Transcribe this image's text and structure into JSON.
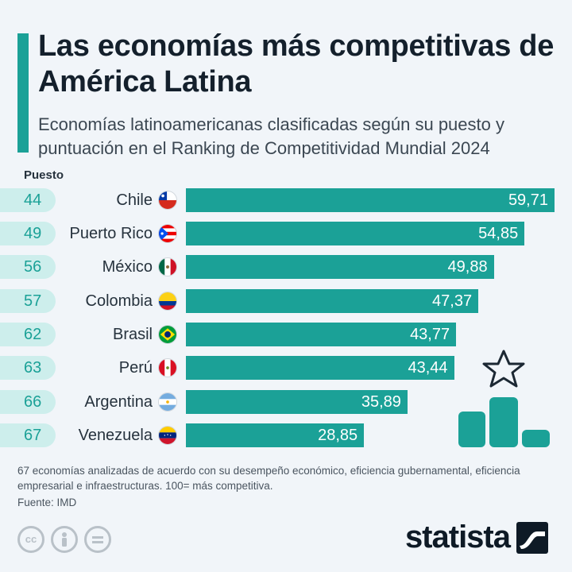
{
  "header": {
    "title": "Las economías más competitivas de América Latina",
    "subtitle": "Economías latinoamericanas clasificadas según su puesto y puntuación en el Ranking de Competitividad Mundial 2024",
    "rank_column_label": "Puesto"
  },
  "chart_data": {
    "type": "bar",
    "orientation": "horizontal",
    "title": "Las economías más competitivas de América Latina",
    "subtitle": "Economías latinoamericanas clasificadas según su puesto y puntuación en el Ranking de Competitividad Mundial 2024",
    "categories": [
      "Chile",
      "Puerto Rico",
      "México",
      "Colombia",
      "Brasil",
      "Perú",
      "Argentina",
      "Venezuela"
    ],
    "ranks": [
      "44",
      "49",
      "56",
      "57",
      "62",
      "63",
      "66",
      "67"
    ],
    "values": [
      59.71,
      54.85,
      49.88,
      47.37,
      43.77,
      43.44,
      35.89,
      28.85
    ],
    "value_labels": [
      "59,71",
      "54,85",
      "49,88",
      "47,37",
      "43,77",
      "43,44",
      "35,89",
      "28,85"
    ],
    "xlim": [
      0,
      59.71
    ],
    "grid": false,
    "legend": "none",
    "bar_color": "#1ba197"
  },
  "footer": {
    "note": "67 economías analizadas de acuerdo con su desempeño económico, eficiencia gubernamental, eficiencia empresarial e infraestructuras. 100= más competitiva.",
    "source": "Fuente: IMD",
    "brand": "statista"
  },
  "license_icons": [
    "cc-icon",
    "attribution-icon",
    "no-derivatives-icon"
  ],
  "colors": {
    "accent": "#1ba197",
    "rank_pill": "#cdeeec",
    "background": "#f1f5f9",
    "title": "#14202c"
  }
}
